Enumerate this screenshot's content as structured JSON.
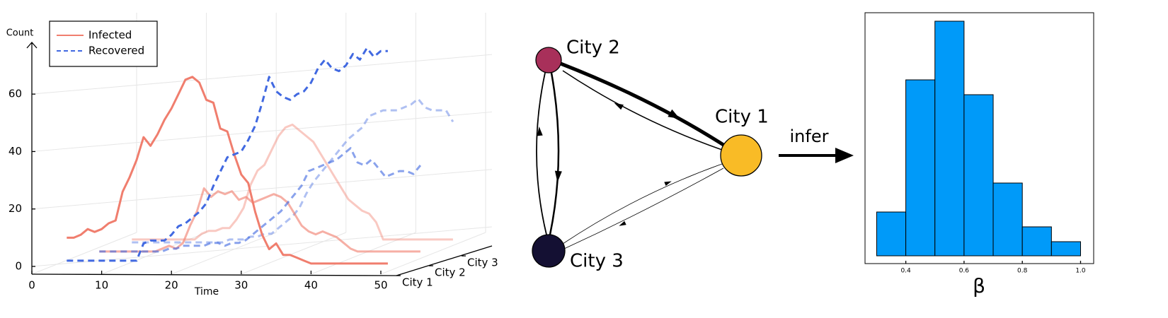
{
  "chart_data": [
    {
      "type": "line3d",
      "xlabel": "Time",
      "ylabel": "Count",
      "x": [
        5,
        6,
        7,
        8,
        9,
        10,
        11,
        12,
        13,
        14,
        15,
        16,
        17,
        18,
        19,
        20,
        21,
        22,
        23,
        24,
        25,
        26,
        27,
        28,
        29,
        30,
        31,
        32,
        33,
        34,
        35,
        36,
        37,
        38,
        39,
        40,
        41,
        42,
        43,
        44,
        45,
        46,
        47,
        48,
        49,
        50,
        51
      ],
      "depth_categories": [
        "City 1",
        "City 2",
        "City 3"
      ],
      "xlim": [
        0,
        50
      ],
      "xticks": [
        0,
        10,
        20,
        30,
        40,
        50
      ],
      "ylim": [
        0,
        78
      ],
      "yticks": [
        0,
        20,
        40,
        60
      ],
      "grid": true,
      "legend": "top-left",
      "series": [
        {
          "name": "Infected",
          "color": "#f07e6e",
          "dashed": false,
          "values": [
            [
              10,
              10,
              11,
              13,
              12,
              13,
              15,
              16,
              26,
              31,
              37,
              45,
              42,
              46,
              51,
              55,
              60,
              65,
              66,
              64,
              58,
              57,
              48,
              47,
              39,
              32,
              29,
              19,
              11,
              6,
              8,
              4,
              4,
              3,
              2,
              1,
              1,
              1,
              1,
              1,
              1,
              1,
              1,
              1,
              1,
              1,
              1
            ],
            [
              1,
              1,
              1,
              1,
              1,
              1,
              1,
              1,
              1,
              2,
              3,
              2,
              4,
              10,
              15,
              23,
              20,
              22,
              21,
              22,
              19,
              20,
              18,
              19,
              20,
              21,
              20,
              18,
              14,
              10,
              8,
              7,
              8,
              7,
              6,
              4,
              2,
              1,
              1,
              1,
              1,
              1,
              1,
              1,
              1,
              1,
              1
            ],
            [
              1,
              1,
              1,
              1,
              1,
              1,
              1,
              1,
              1,
              1,
              3,
              4,
              4,
              5,
              5,
              8,
              12,
              20,
              25,
              27,
              32,
              37,
              40,
              41,
              39,
              37,
              35,
              31,
              27,
              23,
              19,
              15,
              13,
              11,
              10,
              7,
              1,
              1,
              1,
              1,
              1,
              1,
              1,
              1,
              1,
              1,
              1
            ]
          ]
        },
        {
          "name": "Recovered",
          "color": "#4169e1",
          "dashed": true,
          "values": [
            [
              2,
              2,
              2,
              2,
              2,
              2,
              2,
              2,
              2,
              2,
              2,
              8,
              9,
              9,
              9,
              11,
              14,
              15,
              17,
              19,
              22,
              28,
              33,
              38,
              39,
              40,
              44,
              49,
              57,
              66,
              61,
              59,
              58,
              60,
              61,
              64,
              69,
              72,
              69,
              68,
              70,
              74,
              72,
              76,
              73,
              75,
              75
            ],
            [
              1,
              1,
              1,
              1,
              1,
              1,
              1,
              1,
              1,
              1,
              2,
              2,
              3,
              3,
              3,
              3,
              4,
              4,
              3,
              4,
              4,
              5,
              7,
              9,
              11,
              13,
              15,
              18,
              21,
              24,
              29,
              30,
              31,
              32,
              33,
              35,
              37,
              32,
              31,
              33,
              30,
              27,
              28,
              29,
              29,
              28,
              31
            ],
            [
              0,
              0,
              0,
              0,
              0,
              0,
              0,
              0,
              0,
              0,
              0,
              0,
              0,
              0,
              1,
              1,
              1,
              2,
              2,
              3,
              3,
              5,
              7,
              9,
              12,
              17,
              21,
              24,
              27,
              30,
              33,
              36,
              38,
              40,
              44,
              45,
              46,
              46,
              46,
              47,
              48,
              50,
              47,
              46,
              46,
              46,
              42
            ]
          ]
        }
      ]
    },
    {
      "type": "histogram",
      "xlabel": "β",
      "bins": [
        0.3,
        0.4,
        0.5,
        0.6,
        0.7,
        0.8,
        0.9,
        1.0
      ],
      "values": [
        62,
        249,
        332,
        228,
        103,
        41,
        20
      ],
      "color": "#009af9",
      "xlim": [
        0.26,
        1.045
      ],
      "xticks": [
        0.4,
        0.6,
        0.8,
        {
          "value": 1.0,
          "label": "1.0"
        }
      ],
      "ylim": [
        -11,
        344
      ]
    }
  ],
  "diagram": {
    "nodes": [
      {
        "label": "City 2",
        "color": "#a8305a"
      },
      {
        "label": "City 1",
        "color": "#f9bb26"
      },
      {
        "label": "City 3",
        "color": "#141033"
      }
    ],
    "arrow_label": "infer"
  }
}
